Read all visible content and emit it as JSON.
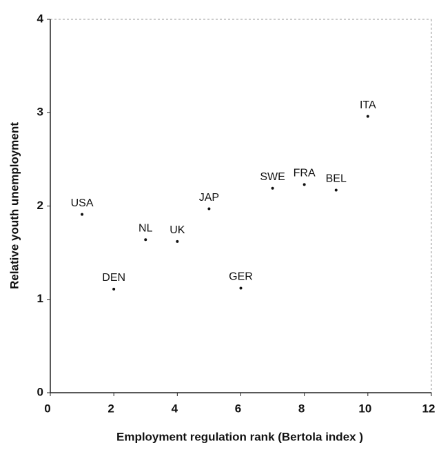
{
  "chart_data": {
    "type": "scatter",
    "x_label": "Employment regulation rank (Bertola index )",
    "y_label": "Relative youth unemployment",
    "x": [
      1,
      2,
      3,
      4,
      5,
      6,
      7,
      8,
      9,
      10
    ],
    "values": [
      1.91,
      1.11,
      1.64,
      1.62,
      1.97,
      1.12,
      2.19,
      2.23,
      2.17,
      2.96
    ],
    "labels": [
      "USA",
      "DEN",
      "NL",
      "UK",
      "JAP",
      "GER",
      "SWE",
      "FRA",
      "BEL",
      "ITA"
    ],
    "color": "#111111",
    "xlim": [
      0,
      12
    ],
    "xticks": [
      0,
      2,
      4,
      6,
      8,
      10,
      12
    ],
    "ylim": [
      0,
      4
    ],
    "yticks": [
      0,
      1,
      2,
      3,
      4
    ]
  }
}
